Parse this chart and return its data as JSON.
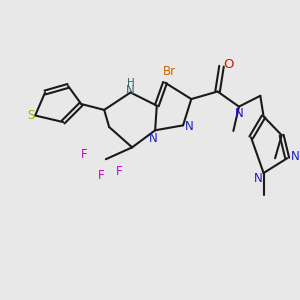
{
  "background_color": "#e8e8e8",
  "figsize": [
    3.0,
    3.0
  ],
  "dpi": 100,
  "xlim": [
    0.0,
    9.0
  ],
  "ylim": [
    0.0,
    9.0
  ]
}
